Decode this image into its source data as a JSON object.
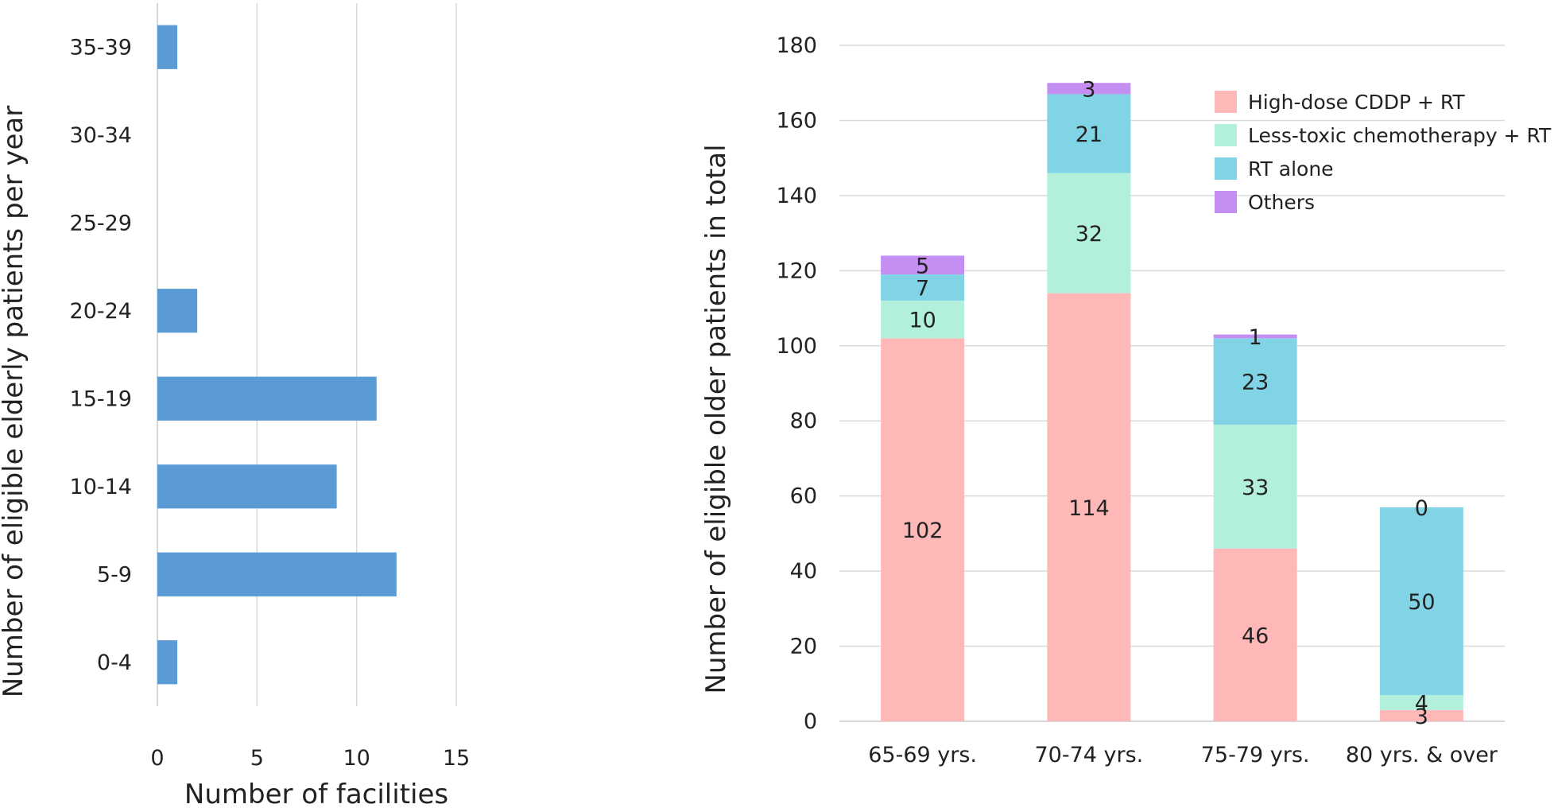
{
  "chart_data": [
    {
      "type": "bar",
      "orientation": "horizontal",
      "categories": [
        "0-4",
        "5-9",
        "10-14",
        "15-19",
        "20-24",
        "25-29",
        "30-34",
        "35-39"
      ],
      "values": [
        1,
        12,
        9,
        11,
        2,
        0,
        0,
        1
      ],
      "xlabel": "Number of facilities",
      "ylabel": "Number of eligible elderly patients per year",
      "xlim": [
        0,
        15
      ],
      "xticks": [
        0,
        5,
        10,
        15
      ],
      "grid": "vertical",
      "colors": {
        "bar": "#5b9bd5"
      }
    },
    {
      "type": "bar",
      "stacked": true,
      "categories": [
        "65-69 yrs.",
        "70-74 yrs.",
        "75-79 yrs.",
        "80 yrs. & over"
      ],
      "series": [
        {
          "name": "High-dose CDDP + RT",
          "values": [
            102,
            114,
            46,
            3
          ],
          "color": "#ffb8b8"
        },
        {
          "name": "Less-toxic chemotherapy + RT",
          "values": [
            10,
            32,
            33,
            4
          ],
          "color": "#b3f0dc"
        },
        {
          "name": "RT alone",
          "values": [
            7,
            21,
            23,
            50
          ],
          "color": "#80d4e6"
        },
        {
          "name": "Others",
          "values": [
            5,
            3,
            1,
            0
          ],
          "color": "#c58ef2"
        }
      ],
      "ylabel": "Number of eligible older patients in total",
      "ylim": [
        0,
        180
      ],
      "yticks": [
        0,
        20,
        40,
        60,
        80,
        100,
        120,
        140,
        160,
        180
      ],
      "grid": "horizontal",
      "legend": "top-right"
    }
  ]
}
